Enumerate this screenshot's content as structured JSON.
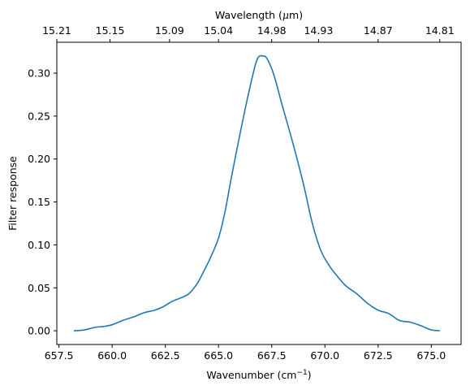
{
  "chart_data": {
    "type": "line",
    "xlabel": "Wavenumber (cm",
    "xlabel_sup": "−1",
    "xlabel_end": ")",
    "ylabel": "Filter response",
    "top_xlabel": "Wavelength (",
    "top_xlabel_mu": "μ",
    "top_xlabel_end": "m)",
    "xlim": [
      657.4,
      676.4
    ],
    "ylim": [
      -0.016,
      0.336
    ],
    "grid": false,
    "legend": "none",
    "line_color": "#1f77b4",
    "x_ticks": [
      657.5,
      660.0,
      662.5,
      665.0,
      667.5,
      670.0,
      672.5,
      675.0
    ],
    "x_tick_labels": [
      "657.5",
      "660.0",
      "662.5",
      "665.0",
      "667.5",
      "670.0",
      "672.5",
      "675.0"
    ],
    "y_ticks": [
      0.0,
      0.05,
      0.1,
      0.15,
      0.2,
      0.25,
      0.3
    ],
    "y_tick_labels": [
      "0.00",
      "0.05",
      "0.10",
      "0.15",
      "0.20",
      "0.25",
      "0.30"
    ],
    "top_ticks": [
      657.4,
      659.9,
      662.7,
      665.0,
      667.5,
      669.7,
      672.5,
      675.4
    ],
    "top_tick_labels": [
      "15.21",
      "15.15",
      "15.09",
      "15.04",
      "14.98",
      "14.93",
      "14.87",
      "14.81"
    ],
    "series": [
      {
        "x": [
          658.2,
          658.7,
          659.2,
          659.6,
          660.0,
          660.5,
          661.0,
          661.5,
          662.0,
          662.4,
          662.8,
          663.2,
          663.6,
          664.0,
          664.3,
          664.6,
          665.0,
          665.3,
          665.6,
          666.0,
          666.4,
          666.8,
          667.1,
          667.3,
          667.6,
          668.0,
          668.5,
          669.0,
          669.4,
          669.8,
          670.2,
          670.6,
          671.0,
          671.5,
          672.0,
          672.5,
          673.0,
          673.5,
          674.0,
          674.5,
          675.0,
          675.4
        ],
        "y": [
          0.0,
          0.001,
          0.004,
          0.005,
          0.007,
          0.012,
          0.016,
          0.021,
          0.024,
          0.028,
          0.034,
          0.038,
          0.043,
          0.055,
          0.069,
          0.084,
          0.108,
          0.138,
          0.178,
          0.228,
          0.275,
          0.315,
          0.32,
          0.316,
          0.298,
          0.262,
          0.218,
          0.17,
          0.126,
          0.094,
          0.076,
          0.063,
          0.052,
          0.043,
          0.032,
          0.024,
          0.02,
          0.012,
          0.01,
          0.006,
          0.001,
          0.0
        ]
      }
    ]
  }
}
